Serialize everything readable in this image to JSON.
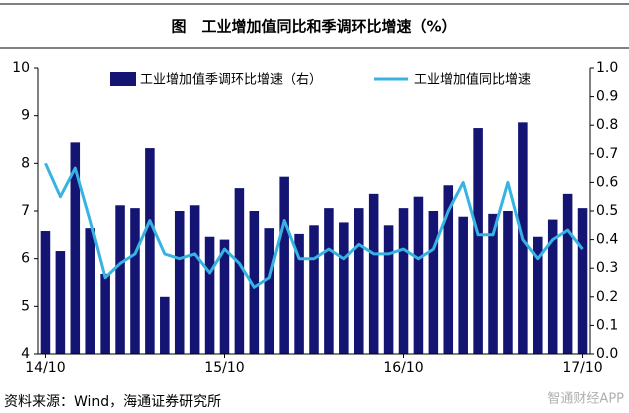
{
  "chart_data": {
    "type": "bar-line",
    "title": "图　工业增加值同比和季调环比增速（%）",
    "source": "资料来源：Wind，海通证券研究所",
    "watermark": "智通财经APP",
    "categories": [
      "14/10",
      null,
      null,
      null,
      null,
      null,
      null,
      null,
      null,
      null,
      null,
      null,
      "15/10",
      null,
      null,
      null,
      null,
      null,
      null,
      null,
      null,
      null,
      null,
      null,
      "16/10",
      null,
      null,
      null,
      null,
      null,
      null,
      null,
      null,
      null,
      null,
      null,
      "17/10"
    ],
    "series": [
      {
        "name": "工业增加值季调环比增速（右）",
        "type": "bar",
        "axis": "y2",
        "color": "#141473",
        "values": [
          0.43,
          0.36,
          0.74,
          0.44,
          0.28,
          0.52,
          0.51,
          0.72,
          0.2,
          0.5,
          0.52,
          0.41,
          0.4,
          0.58,
          0.5,
          0.44,
          0.62,
          0.42,
          0.45,
          0.51,
          0.46,
          0.51,
          0.56,
          0.45,
          0.51,
          0.55,
          0.5,
          0.59,
          0.48,
          0.79,
          0.49,
          0.5,
          0.81,
          0.41,
          0.47,
          0.56,
          0.51
        ]
      },
      {
        "name": "工业增加值同比增速",
        "type": "line",
        "axis": "y",
        "color": "#36b3e2",
        "values": [
          8.0,
          7.3,
          7.9,
          6.8,
          5.6,
          5.9,
          6.1,
          6.8,
          6.1,
          6.0,
          6.1,
          5.7,
          6.2,
          5.9,
          5.4,
          5.6,
          6.8,
          6.0,
          6.0,
          6.2,
          6.0,
          6.3,
          6.1,
          6.1,
          6.2,
          6.0,
          6.2,
          7.0,
          7.6,
          6.5,
          6.5,
          7.6,
          6.4,
          6.0,
          6.4,
          6.6,
          6.2
        ]
      }
    ],
    "ylim": [
      4,
      10
    ],
    "yticks": [
      4,
      5,
      6,
      7,
      8,
      9,
      10
    ],
    "y2lim": [
      0,
      1
    ],
    "y2ticks": [
      {
        "value": 0,
        "label": "0.0"
      },
      0.1,
      0.2,
      0.3,
      0.4,
      0.5,
      0.6,
      0.7,
      0.8,
      0.9,
      {
        "value": 1,
        "label": "1.0"
      }
    ]
  }
}
